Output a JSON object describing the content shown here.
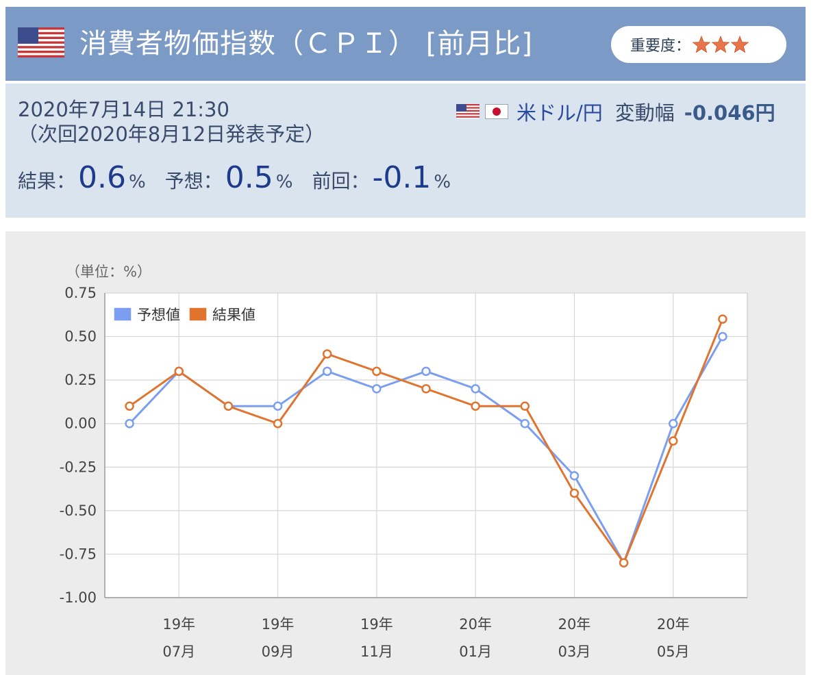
{
  "header": {
    "title": "消費者物価指数（ＣＰＩ） [前月比]",
    "importance_label": "重要度：",
    "importance_stars": 3,
    "flag_icon": "us-flag-icon",
    "star_icon": "star-icon",
    "star_color": "#e8744a"
  },
  "info": {
    "date": "2020年7月14日 21:30",
    "next_release": "（次回2020年8月12日発表予定）",
    "pair_label": "米ドル/円",
    "range_label": "変動幅",
    "range_value": "-0.046円",
    "stats": {
      "result_label": "結果：",
      "result_value": "0.6",
      "forecast_label": "予想：",
      "forecast_value": "0.5",
      "previous_label": "前回：",
      "previous_value": "-0.1",
      "unit": "%"
    }
  },
  "chart_data": {
    "type": "line",
    "unit_label": "（単位：%）",
    "x": [
      "19/06",
      "19/07",
      "19/08",
      "19/09",
      "19/10",
      "19/11",
      "19/12",
      "20/01",
      "20/02",
      "20/03",
      "20/04",
      "20/05",
      "20/06"
    ],
    "x_tick_labels": [
      {
        "index": 1,
        "year": "19年",
        "month": "07月"
      },
      {
        "index": 3,
        "year": "19年",
        "month": "09月"
      },
      {
        "index": 5,
        "year": "19年",
        "month": "11月"
      },
      {
        "index": 7,
        "year": "20年",
        "month": "01月"
      },
      {
        "index": 9,
        "year": "20年",
        "month": "03月"
      },
      {
        "index": 11,
        "year": "20年",
        "month": "05月"
      }
    ],
    "y_ticks": [
      "0.75",
      "0.50",
      "0.25",
      "0.00",
      "-0.25",
      "-0.50",
      "-0.75",
      "-1.00"
    ],
    "ylim": [
      -1.0,
      0.75
    ],
    "grid": true,
    "legend_position": "top-left",
    "series": [
      {
        "name": "予想値",
        "color": "#7b9ef0",
        "values": [
          0.0,
          0.3,
          0.1,
          0.1,
          0.3,
          0.2,
          0.3,
          0.2,
          0.0,
          -0.3,
          -0.8,
          0.0,
          0.5
        ]
      },
      {
        "name": "結果値",
        "color": "#e0742f",
        "values": [
          0.1,
          0.3,
          0.1,
          0.0,
          0.4,
          0.3,
          0.2,
          0.1,
          0.1,
          -0.4,
          -0.8,
          -0.1,
          0.6
        ]
      }
    ]
  }
}
